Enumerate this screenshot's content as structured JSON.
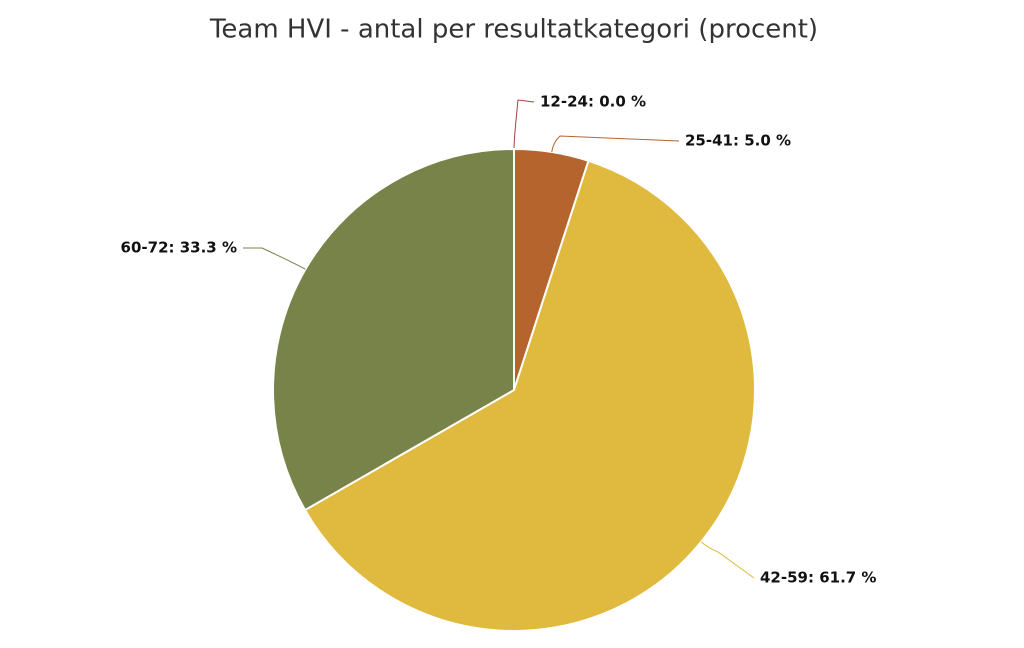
{
  "chart_data": {
    "type": "pie",
    "title": "Team HVI - antal per resultatkategori (procent)",
    "values": [
      0.0,
      5.0,
      61.7,
      33.3
    ],
    "value_labels": [
      "12-24: 0.0 %",
      "25-41: 5.0 %",
      "42-59: 61.7 %",
      "60-72: 33.3 %"
    ],
    "colors": [
      "#a0413a",
      "#b5642e",
      "#e0b93f",
      "#78834a"
    ]
  }
}
